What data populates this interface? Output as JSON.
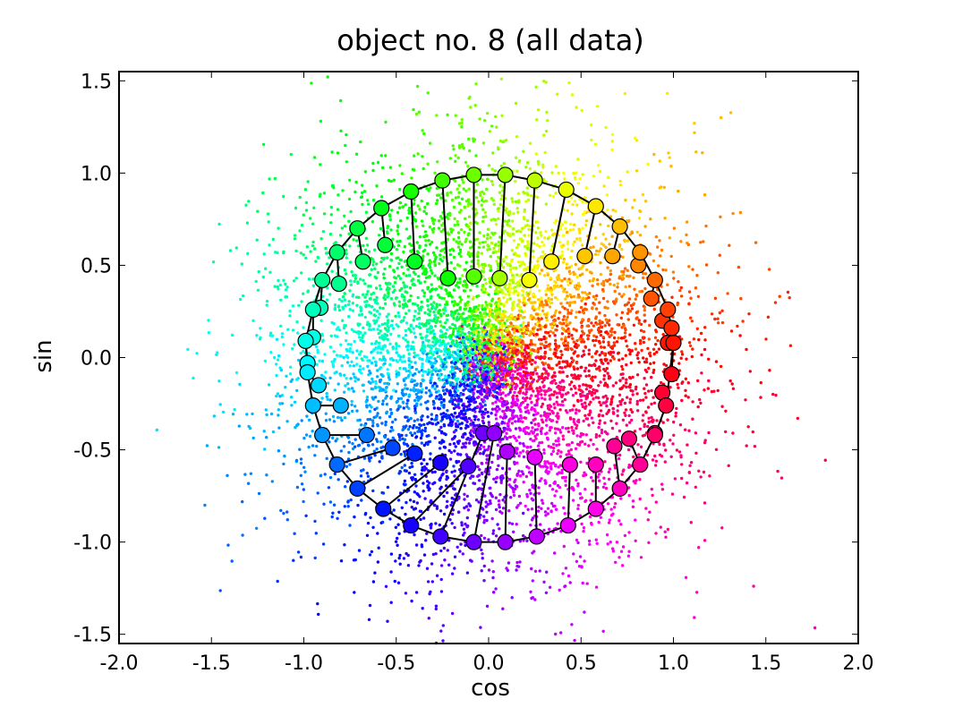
{
  "chart_data": {
    "type": "scatter",
    "title": "object no. 8 (all data)",
    "xlabel": "cos",
    "ylabel": "sin",
    "xlim": [
      -2.0,
      2.0
    ],
    "ylim": [
      -1.55,
      1.55
    ],
    "xticks": [
      -2.0,
      -1.5,
      -1.0,
      -0.5,
      0.0,
      0.5,
      1.0,
      1.5,
      2.0
    ],
    "yticks": [
      -1.5,
      -1.0,
      -0.5,
      0.0,
      0.5,
      1.0,
      1.5
    ],
    "xtick_labels": [
      "-2.0",
      "-1.5",
      "-1.0",
      "-0.5",
      "0.0",
      "0.5",
      "1.0",
      "1.5",
      "2.0"
    ],
    "ytick_labels": [
      "-1.5",
      "-1.0",
      "-0.5",
      "0.0",
      "0.5",
      "1.0",
      "1.5"
    ],
    "grid": false,
    "legend": false,
    "colormap": "hue by angle (red at 0, green at 120°, blue at 240°)",
    "background_points": {
      "description_of_distribution": "dense cloud centred at origin, points coloured by angle",
      "center": [
        0.0,
        0.0
      ],
      "radius_mean": 0.55,
      "radius_spread": 0.42
    },
    "ring_markers": [
      {
        "x": 1.0,
        "y": 0.08
      },
      {
        "x": 0.99,
        "y": 0.16
      },
      {
        "x": 0.97,
        "y": 0.26
      },
      {
        "x": 0.9,
        "y": 0.42
      },
      {
        "x": 0.82,
        "y": 0.57
      },
      {
        "x": 0.71,
        "y": 0.71
      },
      {
        "x": 0.58,
        "y": 0.82
      },
      {
        "x": 0.42,
        "y": 0.91
      },
      {
        "x": 0.25,
        "y": 0.96
      },
      {
        "x": 0.09,
        "y": 0.99
      },
      {
        "x": -0.08,
        "y": 0.99
      },
      {
        "x": -0.25,
        "y": 0.96
      },
      {
        "x": -0.42,
        "y": 0.9
      },
      {
        "x": -0.58,
        "y": 0.81
      },
      {
        "x": -0.71,
        "y": 0.7
      },
      {
        "x": -0.82,
        "y": 0.57
      },
      {
        "x": -0.9,
        "y": 0.42
      },
      {
        "x": -0.95,
        "y": 0.26
      },
      {
        "x": -0.99,
        "y": 0.09
      },
      {
        "x": -0.98,
        "y": -0.08
      },
      {
        "x": -0.95,
        "y": -0.26
      },
      {
        "x": -0.9,
        "y": -0.42
      },
      {
        "x": -0.82,
        "y": -0.58
      },
      {
        "x": -0.71,
        "y": -0.71
      },
      {
        "x": -0.57,
        "y": -0.82
      },
      {
        "x": -0.42,
        "y": -0.91
      },
      {
        "x": -0.26,
        "y": -0.97
      },
      {
        "x": -0.08,
        "y": -1.0
      },
      {
        "x": 0.09,
        "y": -1.0
      },
      {
        "x": 0.26,
        "y": -0.97
      },
      {
        "x": 0.43,
        "y": -0.91
      },
      {
        "x": 0.58,
        "y": -0.82
      },
      {
        "x": 0.71,
        "y": -0.71
      },
      {
        "x": 0.82,
        "y": -0.58
      },
      {
        "x": 0.9,
        "y": -0.42
      },
      {
        "x": 0.96,
        "y": -0.26
      }
    ],
    "inner_markers": [
      {
        "x": 0.99,
        "y": -0.09
      },
      {
        "x": 0.97,
        "y": 0.08
      },
      {
        "x": 0.94,
        "y": 0.2
      },
      {
        "x": 0.88,
        "y": 0.32
      },
      {
        "x": 0.81,
        "y": 0.5
      },
      {
        "x": 0.67,
        "y": 0.55
      },
      {
        "x": 0.52,
        "y": 0.55
      },
      {
        "x": 0.34,
        "y": 0.52
      },
      {
        "x": 0.22,
        "y": 0.42
      },
      {
        "x": 0.06,
        "y": 0.43
      },
      {
        "x": -0.08,
        "y": 0.44
      },
      {
        "x": -0.22,
        "y": 0.43
      },
      {
        "x": -0.4,
        "y": 0.52
      },
      {
        "x": -0.56,
        "y": 0.61
      },
      {
        "x": -0.68,
        "y": 0.52
      },
      {
        "x": -0.81,
        "y": 0.4
      },
      {
        "x": -0.91,
        "y": 0.27
      },
      {
        "x": -0.95,
        "y": 0.11
      },
      {
        "x": -0.98,
        "y": -0.03
      },
      {
        "x": -0.92,
        "y": -0.15
      },
      {
        "x": -0.8,
        "y": -0.26
      },
      {
        "x": -0.66,
        "y": -0.42
      },
      {
        "x": -0.52,
        "y": -0.49
      },
      {
        "x": -0.4,
        "y": -0.52
      },
      {
        "x": -0.26,
        "y": -0.57
      },
      {
        "x": -0.11,
        "y": -0.59
      },
      {
        "x": -0.03,
        "y": -0.41
      },
      {
        "x": 0.03,
        "y": -0.41
      },
      {
        "x": 0.1,
        "y": -0.51
      },
      {
        "x": 0.25,
        "y": -0.54
      },
      {
        "x": 0.44,
        "y": -0.58
      },
      {
        "x": 0.58,
        "y": -0.58
      },
      {
        "x": 0.68,
        "y": -0.48
      },
      {
        "x": 0.76,
        "y": -0.44
      },
      {
        "x": 0.9,
        "y": -0.41
      },
      {
        "x": 0.94,
        "y": -0.19
      }
    ]
  }
}
